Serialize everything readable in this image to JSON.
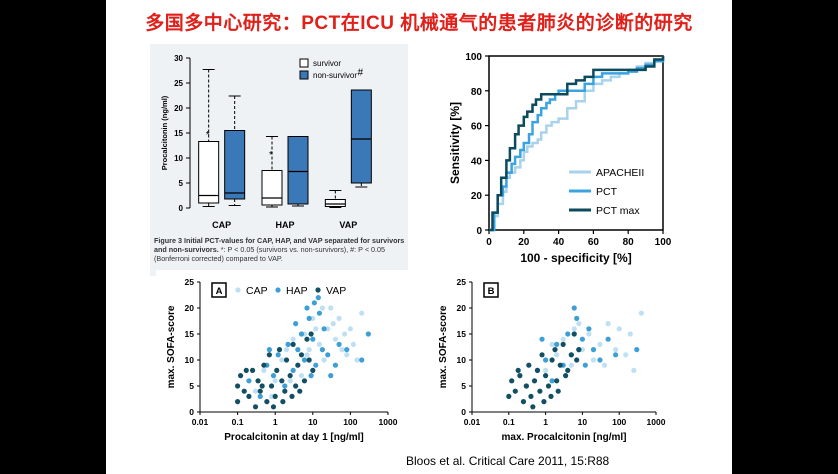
{
  "slide": {
    "title": "多国多中心研究：PCT在ICU 机械通气的患者肺炎的诊断的研究",
    "citation": "Bloos et al. Critical Care 2011, 15:R88"
  },
  "colors": {
    "title": "#e0201a",
    "survivor": "#ffffff",
    "non_survivor": "#3a78b8",
    "apache": "#a9d3ec",
    "pct": "#3aa3e0",
    "pct_max": "#0c4a5e",
    "cap": "#bfe0f2",
    "hap": "#3d9fd6",
    "vap": "#134f63"
  },
  "chart_data": [
    {
      "type": "boxplot",
      "ylabel": "Procalcitonin (ng/ml)",
      "ylim": [
        0,
        30
      ],
      "yticks": [
        "0",
        "5",
        "10",
        "15",
        "20",
        "25",
        "30"
      ],
      "categories": [
        "CAP",
        "HAP",
        "VAP"
      ],
      "legend": [
        "survivor",
        "non-survivor"
      ],
      "series": [
        {
          "name": "survivor",
          "boxes": [
            {
              "min": 0.3,
              "q1": 1.0,
              "median": 2.5,
              "q3": 13.3,
              "max": 27.7
            },
            {
              "min": 0.2,
              "q1": 0.6,
              "median": 2.0,
              "q3": 7.5,
              "max": 14.3
            },
            {
              "min": 0.1,
              "q1": 0.3,
              "median": 0.8,
              "q3": 1.7,
              "max": 3.5
            }
          ]
        },
        {
          "name": "non-survivor",
          "boxes": [
            {
              "min": 0.5,
              "q1": 1.8,
              "median": 3.0,
              "q3": 15.5,
              "max": 22.4
            },
            {
              "min": 0.4,
              "q1": 0.8,
              "median": 7.3,
              "q3": 14.3,
              "max": 14.3
            },
            {
              "min": 4.2,
              "q1": 5.0,
              "median": 13.8,
              "q3": 23.6,
              "max": 23.6
            }
          ]
        }
      ],
      "annotations": [
        "*",
        "*",
        "#"
      ],
      "caption_bold": "Figure 3 Initial PCT-values for CAP, HAP, and VAP separated for survivors and non-survivors.",
      "caption_text": " *: P < 0.05 (survivors vs. non-survivors), #: P < 0.05 (Bonferroni corrected) compared to VAP."
    },
    {
      "type": "line",
      "xlabel": "100 - specificity [%]",
      "ylabel": "Sensitivity [%]",
      "xlim": [
        0,
        100
      ],
      "ylim": [
        0,
        100
      ],
      "xticks": [
        "0",
        "20",
        "40",
        "60",
        "80",
        "100"
      ],
      "yticks": [
        "0",
        "20",
        "40",
        "60",
        "80",
        "100"
      ],
      "series": [
        {
          "name": "APACHEII",
          "x": [
            0,
            3,
            5,
            8,
            10,
            12,
            15,
            18,
            20,
            22,
            25,
            28,
            30,
            33,
            36,
            40,
            45,
            50,
            55,
            60,
            65,
            70,
            75,
            80,
            85,
            90,
            95,
            100
          ],
          "y": [
            0,
            8,
            15,
            22,
            30,
            33,
            36,
            40,
            45,
            48,
            50,
            52,
            56,
            60,
            62,
            64,
            70,
            74,
            80,
            84,
            86,
            88,
            90,
            92,
            94,
            96,
            98,
            100
          ]
        },
        {
          "name": "PCT",
          "x": [
            0,
            3,
            5,
            8,
            10,
            13,
            15,
            18,
            20,
            23,
            25,
            28,
            30,
            33,
            35,
            38,
            40,
            45,
            50,
            55,
            60,
            65,
            70,
            75,
            80,
            85,
            90,
            95,
            100
          ],
          "y": [
            0,
            10,
            20,
            25,
            33,
            38,
            42,
            46,
            50,
            55,
            62,
            66,
            70,
            73,
            75,
            78,
            80,
            80,
            80,
            84,
            88,
            90,
            90,
            90,
            91,
            93,
            95,
            97,
            100
          ]
        },
        {
          "name": "PCT max",
          "x": [
            0,
            2,
            5,
            7,
            10,
            12,
            15,
            17,
            20,
            22,
            25,
            27,
            30,
            32,
            35,
            40,
            45,
            50,
            55,
            60,
            65,
            70,
            75,
            80,
            85,
            90,
            95,
            100
          ],
          "y": [
            0,
            10,
            20,
            30,
            40,
            47,
            55,
            60,
            65,
            68,
            72,
            75,
            78,
            78,
            78,
            78,
            84,
            86,
            88,
            92,
            92,
            92,
            92,
            92,
            92,
            94,
            98,
            100
          ]
        }
      ],
      "legend_position": "bottom-right"
    },
    {
      "type": "scatter",
      "panel_label": "A",
      "xlabel": "Procalcitonin at day 1 [ng/ml]",
      "ylabel": "max. SOFA-score",
      "xscale": "log",
      "xlim": [
        0.01,
        1000
      ],
      "ylim": [
        0,
        25
      ],
      "xticks": [
        "0.01",
        "0.1",
        "1",
        "10",
        "100",
        "1000"
      ],
      "yticks": [
        "0",
        "5",
        "10",
        "15",
        "20",
        "25"
      ],
      "legend": [
        "CAP",
        "HAP",
        "VAP"
      ],
      "series": [
        {
          "name": "CAP",
          "points": [
            [
              0.3,
              4
            ],
            [
              0.5,
              8
            ],
            [
              1,
              6
            ],
            [
              1.5,
              10
            ],
            [
              2,
              12
            ],
            [
              3,
              14
            ],
            [
              4,
              9
            ],
            [
              6,
              15
            ],
            [
              8,
              12
            ],
            [
              10,
              18
            ],
            [
              12,
              16
            ],
            [
              15,
              13
            ],
            [
              20,
              10
            ],
            [
              25,
              16
            ],
            [
              30,
              20
            ],
            [
              40,
              14
            ],
            [
              50,
              18
            ],
            [
              60,
              12
            ],
            [
              80,
              11
            ],
            [
              100,
              16
            ],
            [
              150,
              10
            ],
            [
              200,
              19
            ],
            [
              0.8,
              3
            ],
            [
              2.5,
              6
            ],
            [
              5,
              7
            ],
            [
              7,
              11
            ],
            [
              18,
              20
            ],
            [
              35,
              17
            ],
            [
              70,
              15
            ],
            [
              120,
              13
            ]
          ]
        },
        {
          "name": "HAP",
          "points": [
            [
              0.2,
              6
            ],
            [
              0.4,
              3
            ],
            [
              0.6,
              9
            ],
            [
              0.9,
              7
            ],
            [
              1.2,
              11
            ],
            [
              1.8,
              5
            ],
            [
              2.2,
              13
            ],
            [
              3,
              8
            ],
            [
              4,
              12
            ],
            [
              5,
              15
            ],
            [
              6,
              10
            ],
            [
              8,
              18
            ],
            [
              9,
              7
            ],
            [
              10,
              14
            ],
            [
              12,
              9
            ],
            [
              15,
              19
            ],
            [
              18,
              12
            ],
            [
              20,
              16
            ],
            [
              25,
              11
            ],
            [
              30,
              7
            ],
            [
              40,
              9
            ],
            [
              50,
              13
            ],
            [
              80,
              12
            ],
            [
              200,
              10
            ],
            [
              300,
              15
            ],
            [
              3.5,
              17
            ],
            [
              7,
              20
            ],
            [
              11,
              21
            ],
            [
              14,
              22
            ],
            [
              0.7,
              12
            ]
          ]
        },
        {
          "name": "VAP",
          "points": [
            [
              0.1,
              2
            ],
            [
              0.1,
              5
            ],
            [
              0.12,
              7
            ],
            [
              0.15,
              4
            ],
            [
              0.2,
              3
            ],
            [
              0.25,
              8
            ],
            [
              0.3,
              1
            ],
            [
              0.35,
              6
            ],
            [
              0.4,
              4
            ],
            [
              0.5,
              9
            ],
            [
              0.6,
              2
            ],
            [
              0.7,
              11
            ],
            [
              0.8,
              5
            ],
            [
              1,
              3
            ],
            [
              1.1,
              8
            ],
            [
              1.3,
              12
            ],
            [
              1.5,
              6
            ],
            [
              1.8,
              4
            ],
            [
              2,
              10
            ],
            [
              2.5,
              7
            ],
            [
              3,
              13
            ],
            [
              3.5,
              5
            ],
            [
              4,
              9
            ],
            [
              5,
              11
            ],
            [
              6,
              6
            ],
            [
              7,
              14
            ],
            [
              8,
              10
            ],
            [
              9,
              15
            ],
            [
              10,
              8
            ],
            [
              0.45,
              5
            ],
            [
              0.9,
              1
            ],
            [
              1.6,
              2
            ],
            [
              2.8,
              3
            ],
            [
              4.5,
              4
            ],
            [
              0.17,
              8
            ]
          ]
        }
      ]
    },
    {
      "type": "scatter",
      "panel_label": "B",
      "xlabel": "max. Procalcitonin [ng/ml]",
      "ylabel": "max. SOFA-score",
      "xscale": "log",
      "xlim": [
        0.01,
        1000
      ],
      "ylim": [
        0,
        25
      ],
      "xticks": [
        "0.01",
        "0.1",
        "1",
        "10",
        "100",
        "1000"
      ],
      "yticks": [
        "0",
        "5",
        "10",
        "15",
        "20",
        "25"
      ],
      "series": [
        {
          "name": "CAP",
          "points": [
            [
              0.5,
              6
            ],
            [
              1,
              8
            ],
            [
              2,
              11
            ],
            [
              3,
              14
            ],
            [
              5,
              9
            ],
            [
              8,
              17
            ],
            [
              10,
              12
            ],
            [
              15,
              15
            ],
            [
              20,
              10
            ],
            [
              30,
              13
            ],
            [
              50,
              17
            ],
            [
              80,
              12
            ],
            [
              100,
              16
            ],
            [
              150,
              11
            ],
            [
              200,
              15
            ],
            [
              400,
              19
            ],
            [
              250,
              8
            ],
            [
              1.5,
              13
            ],
            [
              6,
              16
            ],
            [
              40,
              9
            ]
          ]
        },
        {
          "name": "HAP",
          "points": [
            [
              0.3,
              5
            ],
            [
              0.6,
              8
            ],
            [
              1,
              10
            ],
            [
              1.5,
              6
            ],
            [
              2,
              13
            ],
            [
              3,
              9
            ],
            [
              4,
              15
            ],
            [
              5,
              11
            ],
            [
              7,
              18
            ],
            [
              8,
              12
            ],
            [
              10,
              14
            ],
            [
              12,
              9
            ],
            [
              15,
              16
            ],
            [
              20,
              12
            ],
            [
              30,
              10
            ],
            [
              50,
              14
            ],
            [
              80,
              11
            ],
            [
              300,
              12
            ],
            [
              0.8,
              14
            ],
            [
              6,
              20
            ]
          ]
        },
        {
          "name": "VAP",
          "points": [
            [
              0.1,
              3
            ],
            [
              0.12,
              6
            ],
            [
              0.15,
              4
            ],
            [
              0.2,
              7
            ],
            [
              0.25,
              2
            ],
            [
              0.3,
              5
            ],
            [
              0.35,
              9
            ],
            [
              0.4,
              3
            ],
            [
              0.5,
              6
            ],
            [
              0.6,
              8
            ],
            [
              0.7,
              4
            ],
            [
              0.8,
              11
            ],
            [
              1,
              7
            ],
            [
              1.2,
              5
            ],
            [
              1.5,
              10
            ],
            [
              1.8,
              12
            ],
            [
              2,
              6
            ],
            [
              2.5,
              9
            ],
            [
              3,
              13
            ],
            [
              4,
              8
            ],
            [
              5,
              11
            ],
            [
              6,
              15
            ],
            [
              7,
              10
            ],
            [
              8,
              12
            ],
            [
              0.45,
              1
            ],
            [
              0.9,
              2
            ],
            [
              1.4,
              3
            ],
            [
              2.2,
              4
            ],
            [
              3.5,
              7
            ],
            [
              0.18,
              8
            ]
          ]
        }
      ]
    }
  ]
}
